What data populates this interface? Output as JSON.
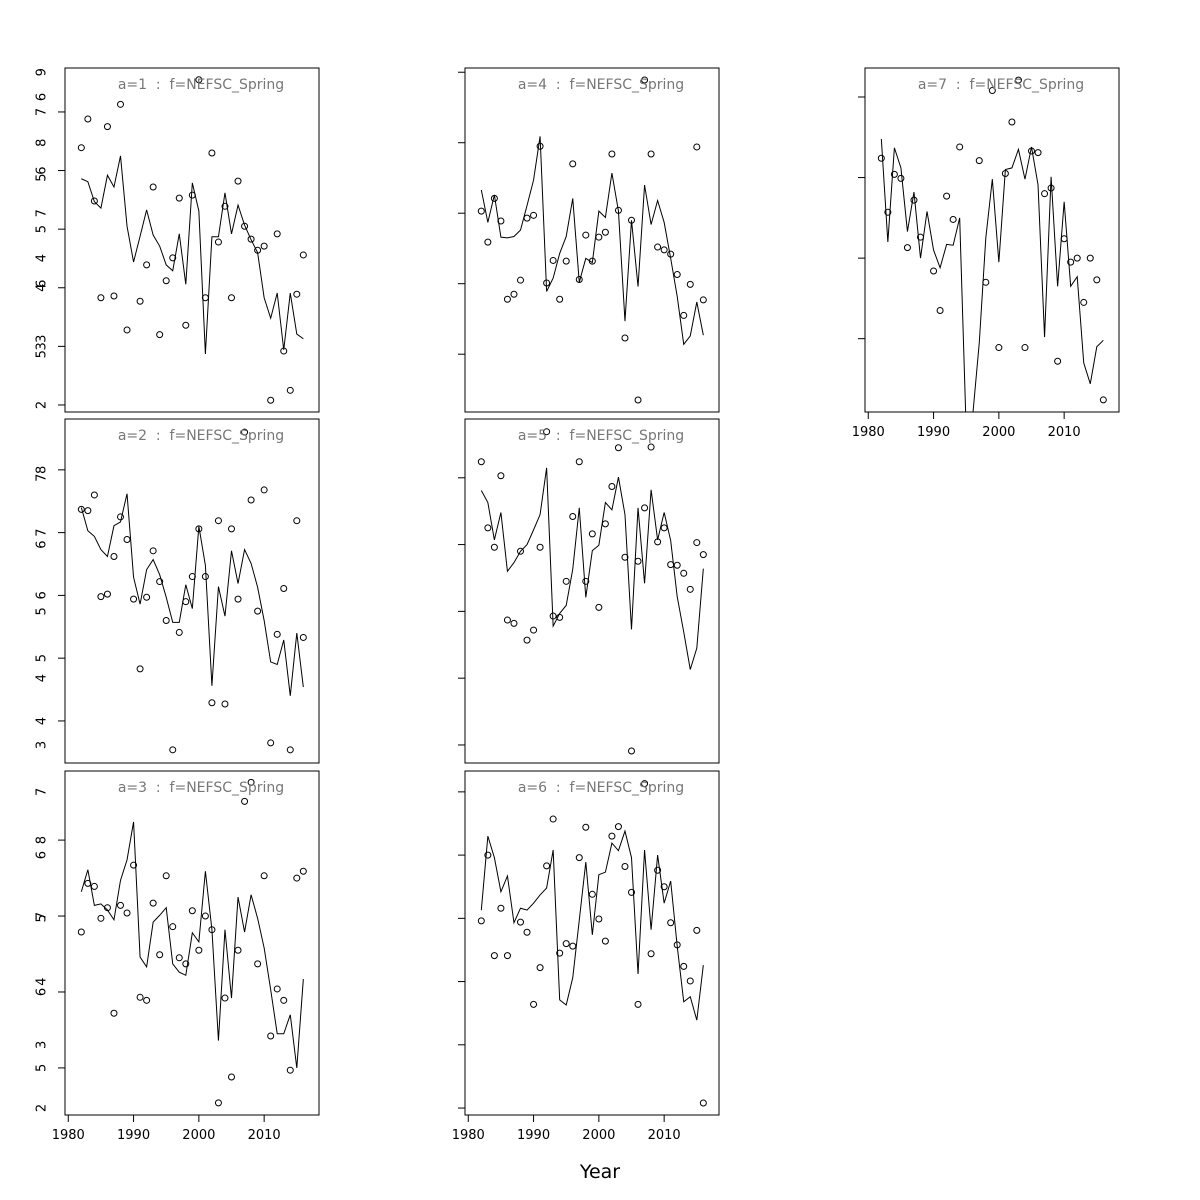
{
  "xlabel": "Year",
  "chart_data": [
    {
      "type": "line",
      "title": "a=1  :  f=NEFSC_Spring",
      "x": [
        1982,
        1983,
        1984,
        1985,
        1986,
        1987,
        1988,
        1989,
        1990,
        1991,
        1992,
        1993,
        1994,
        1995,
        1996,
        1997,
        1998,
        1999,
        2000,
        2001,
        2002,
        2003,
        2004,
        2005,
        2006,
        2007,
        2008,
        2009,
        2010,
        2011,
        2012,
        2013,
        2014,
        2015,
        2016
      ],
      "series": [
        {
          "color": "#000000",
          "marker": "circle",
          "values": [
            6.39,
            6.88,
            5.48,
            3.83,
            6.75,
            3.86,
            7.13,
            3.28,
            null,
            3.77,
            4.39,
            5.72,
            3.2,
            4.12,
            4.51,
            5.53,
            3.36,
            5.58,
            7.55,
            3.83,
            6.3,
            4.78,
            5.39,
            3.83,
            5.82,
            5.05,
            4.83,
            4.64,
            4.71,
            2.08,
            4.92,
            2.92,
            2.25,
            3.89,
            4.56
          ]
        },
        {
          "color": "#000000",
          "marker": "none",
          "values": [
            5.86,
            5.81,
            5.47,
            5.36,
            5.92,
            5.72,
            6.25,
            5.05,
            4.44,
            4.88,
            5.33,
            4.9,
            4.71,
            4.39,
            4.29,
            4.92,
            4.06,
            5.79,
            5.31,
            2.87,
            4.87,
            4.87,
            5.62,
            4.92,
            5.41,
            5.07,
            4.82,
            4.6,
            3.83,
            3.48,
            3.91,
            2.94,
            3.91,
            3.21,
            3.13
          ]
        }
      ],
      "xlim": [
        1979.5,
        2018.4
      ],
      "ylim": [
        1.88,
        7.75
      ],
      "yticks": [
        2,
        3,
        4,
        5,
        6,
        7
      ]
    },
    {
      "type": "line",
      "title": "a=2  :  f=NEFSC_Spring",
      "x": [
        1982,
        1983,
        1984,
        1985,
        1986,
        1987,
        1988,
        1989,
        1990,
        1991,
        1992,
        1993,
        1994,
        1995,
        1996,
        1997,
        1998,
        1999,
        2000,
        2001,
        2002,
        2003,
        2004,
        2005,
        2006,
        2007,
        2008,
        2009,
        2010,
        2011,
        2012,
        2013,
        2014,
        2015,
        2016
      ],
      "series": [
        {
          "color": "#000000",
          "marker": "circle",
          "values": [
            7.37,
            7.35,
            7.6,
            5.98,
            6.02,
            6.62,
            7.25,
            6.89,
            5.94,
            4.83,
            5.97,
            6.71,
            6.22,
            5.6,
            3.54,
            5.41,
            5.9,
            6.3,
            7.06,
            6.3,
            4.29,
            7.19,
            4.27,
            7.06,
            5.94,
            8.6,
            7.52,
            5.75,
            7.68,
            3.65,
            5.38,
            6.11,
            3.54,
            7.19,
            5.33
          ]
        },
        {
          "color": "#000000",
          "marker": "none",
          "values": [
            7.4,
            7.03,
            6.94,
            6.73,
            6.62,
            7.11,
            7.17,
            7.62,
            6.29,
            5.86,
            6.41,
            6.57,
            6.33,
            5.97,
            5.57,
            5.57,
            6.17,
            5.79,
            7.1,
            6.48,
            4.56,
            6.14,
            5.67,
            6.71,
            6.19,
            6.73,
            6.51,
            6.13,
            5.6,
            4.94,
            4.9,
            5.29,
            4.4,
            5.4,
            4.54
          ]
        }
      ],
      "xlim": [
        1979.5,
        2018.4
      ],
      "ylim": [
        3.33,
        8.81
      ],
      "yticks": [
        4,
        5,
        6,
        7,
        8
      ]
    },
    {
      "type": "line",
      "title": "a=3  :  f=NEFSC_Spring",
      "x": [
        1982,
        1983,
        1984,
        1985,
        1986,
        1987,
        1988,
        1989,
        1990,
        1991,
        1992,
        1993,
        1994,
        1995,
        1996,
        1997,
        1998,
        1999,
        2000,
        2001,
        2002,
        2003,
        2004,
        2005,
        2006,
        2007,
        2008,
        2009,
        2010,
        2011,
        2012,
        2013,
        2014,
        2015,
        2016
      ],
      "series": [
        {
          "color": "#000000",
          "marker": "circle",
          "values": [
            6.79,
            7.43,
            7.39,
            6.97,
            7.11,
            5.72,
            7.14,
            7.04,
            7.67,
            5.93,
            5.89,
            7.17,
            6.49,
            7.53,
            6.86,
            6.45,
            6.37,
            7.07,
            6.55,
            7.0,
            6.82,
            4.54,
            5.92,
            4.88,
            6.55,
            8.51,
            8.76,
            6.37,
            7.53,
            5.42,
            6.04,
            5.89,
            4.97,
            7.5,
            7.59
          ]
        },
        {
          "color": "#000000",
          "marker": "none",
          "values": [
            7.32,
            7.61,
            7.14,
            7.16,
            7.08,
            6.95,
            7.47,
            7.74,
            8.24,
            6.46,
            6.33,
            6.92,
            7.01,
            7.11,
            6.37,
            6.26,
            6.22,
            6.78,
            6.66,
            7.59,
            6.82,
            5.36,
            6.82,
            5.92,
            7.25,
            6.79,
            7.28,
            6.97,
            6.58,
            6.03,
            5.45,
            5.45,
            5.7,
            5.0,
            6.17
          ]
        }
      ],
      "xlim": [
        1979.5,
        2018.4
      ],
      "ylim": [
        4.38,
        8.91
      ],
      "yticks": [
        5,
        6,
        7,
        8
      ],
      "xticks": [
        1980,
        1990,
        2000,
        2010
      ]
    },
    {
      "type": "line",
      "title": "a=4  :  f=NEFSC_Spring",
      "x": [
        1982,
        1983,
        1984,
        1985,
        1986,
        1987,
        1988,
        1989,
        1990,
        1991,
        1992,
        1993,
        1994,
        1995,
        1996,
        1997,
        1998,
        1999,
        2000,
        2001,
        2002,
        2003,
        2004,
        2005,
        2006,
        2007,
        2008,
        2009,
        2010,
        2011,
        2012,
        2013,
        2014,
        2015,
        2016
      ],
      "series": [
        {
          "color": "#000000",
          "marker": "circle",
          "values": [
            7.03,
            6.59,
            7.21,
            6.89,
            5.78,
            5.85,
            6.05,
            6.93,
            6.97,
            7.95,
            6.01,
            6.33,
            5.78,
            6.32,
            7.7,
            6.06,
            6.69,
            6.32,
            6.66,
            6.73,
            7.84,
            7.04,
            5.23,
            6.9,
            4.35,
            8.89,
            7.84,
            6.52,
            6.48,
            6.42,
            6.13,
            5.55,
            5.99,
            7.94,
            5.77
          ]
        },
        {
          "color": "#000000",
          "marker": "none",
          "values": [
            7.33,
            6.87,
            7.26,
            6.66,
            6.65,
            6.67,
            6.76,
            7.11,
            7.47,
            8.09,
            5.89,
            6.08,
            6.43,
            6.67,
            7.21,
            6.02,
            6.36,
            6.3,
            7.03,
            6.94,
            7.57,
            7.03,
            5.47,
            6.9,
            5.96,
            7.4,
            6.84,
            7.18,
            6.87,
            6.36,
            5.82,
            5.14,
            5.26,
            5.74,
            5.27
          ]
        }
      ],
      "xlim": [
        1979.5,
        2018.4
      ],
      "ylim": [
        4.18,
        9.06
      ],
      "yticks": [
        5,
        6,
        7,
        8,
        9
      ]
    },
    {
      "type": "line",
      "title": "a=5  :  f=NEFSC_Spring",
      "x": [
        1982,
        1983,
        1984,
        1985,
        1986,
        1987,
        1988,
        1989,
        1990,
        1991,
        1992,
        1993,
        1994,
        1995,
        1996,
        1997,
        1998,
        1999,
        2000,
        2001,
        2002,
        2003,
        2004,
        2005,
        2006,
        2007,
        2008,
        2009,
        2010,
        2011,
        2012,
        2013,
        2014,
        2015,
        2016
      ],
      "series": [
        {
          "color": "#000000",
          "marker": "circle",
          "values": [
            7.24,
            6.25,
            5.96,
            7.03,
            4.87,
            4.82,
            5.9,
            4.57,
            4.72,
            5.96,
            7.69,
            4.93,
            4.91,
            5.45,
            6.42,
            7.24,
            5.45,
            6.16,
            5.06,
            6.31,
            6.87,
            7.45,
            5.81,
            2.91,
            5.75,
            6.55,
            7.46,
            6.04,
            6.25,
            5.7,
            5.69,
            5.57,
            5.33,
            6.03,
            5.85
          ]
        },
        {
          "color": "#000000",
          "marker": "none",
          "values": [
            6.81,
            6.63,
            6.07,
            6.48,
            5.6,
            5.73,
            5.9,
            6.0,
            6.22,
            6.45,
            7.15,
            4.78,
            4.97,
            5.09,
            5.63,
            6.55,
            5.21,
            5.91,
            5.99,
            6.63,
            6.52,
            7.01,
            6.45,
            4.73,
            6.55,
            5.42,
            6.82,
            6.07,
            6.48,
            6.06,
            5.22,
            4.69,
            4.13,
            4.45,
            5.64
          ]
        }
      ],
      "xlim": [
        1979.5,
        2018.4
      ],
      "ylim": [
        2.73,
        7.88
      ],
      "yticks": [
        3,
        4,
        5,
        6,
        7
      ]
    },
    {
      "type": "line",
      "title": "a=6  :  f=NEFSC_Spring",
      "x": [
        1982,
        1983,
        1984,
        1985,
        1986,
        1987,
        1988,
        1989,
        1990,
        1991,
        1992,
        1993,
        1994,
        1995,
        1996,
        1997,
        1998,
        1999,
        2000,
        2001,
        2002,
        2003,
        2004,
        2005,
        2006,
        2007,
        2008,
        2009,
        2010,
        2011,
        2012,
        2013,
        2014,
        2015,
        2016
      ],
      "series": [
        {
          "color": "#000000",
          "marker": "circle",
          "values": [
            4.96,
            6.0,
            4.41,
            5.16,
            4.41,
            null,
            4.94,
            4.78,
            3.64,
            4.22,
            5.83,
            6.57,
            4.45,
            4.6,
            4.56,
            5.96,
            6.44,
            5.38,
            4.99,
            4.64,
            6.3,
            6.45,
            5.82,
            5.41,
            3.64,
            7.13,
            4.44,
            5.76,
            5.5,
            4.93,
            4.58,
            4.24,
            4.01,
            4.81,
            2.08
          ]
        },
        {
          "color": "#000000",
          "marker": "none",
          "values": [
            5.13,
            6.3,
            5.96,
            5.42,
            5.67,
            4.93,
            5.16,
            5.13,
            5.24,
            5.37,
            5.48,
            6.08,
            3.71,
            3.63,
            4.06,
            4.97,
            5.89,
            4.74,
            5.69,
            5.73,
            6.19,
            6.07,
            6.38,
            5.96,
            4.12,
            6.08,
            4.82,
            6.0,
            5.24,
            5.59,
            4.56,
            3.68,
            3.76,
            3.39,
            4.26
          ]
        }
      ],
      "xlim": [
        1979.5,
        2018.4
      ],
      "ylim": [
        1.89,
        7.33
      ],
      "yticks": [
        2,
        3,
        4,
        5,
        6,
        7
      ],
      "xticks": [
        1980,
        1990,
        2000,
        2010
      ]
    },
    {
      "type": "line",
      "title": "a=7  :  f=NEFSC_Spring",
      "x": [
        1982,
        1983,
        1984,
        1985,
        1986,
        1987,
        1988,
        1989,
        1990,
        1991,
        1992,
        1993,
        1994,
        1995,
        1996,
        1997,
        1998,
        1999,
        2000,
        2001,
        2002,
        2003,
        2004,
        2005,
        2006,
        2007,
        2008,
        2009,
        2010,
        2011,
        2012,
        2013,
        2014,
        2015,
        2016
      ],
      "series": [
        {
          "color": "#000000",
          "marker": "circle",
          "values": [
            5.24,
            4.57,
            5.04,
            4.99,
            4.13,
            4.72,
            4.26,
            null,
            3.84,
            3.35,
            4.77,
            4.48,
            5.38,
            null,
            null,
            5.21,
            3.7,
            6.08,
            2.89,
            5.05,
            5.69,
            6.21,
            2.89,
            5.33,
            5.31,
            4.8,
            4.87,
            2.72,
            4.24,
            3.95,
            4.0,
            3.45,
            4.0,
            3.73,
            2.24
          ]
        },
        {
          "color": "#000000",
          "marker": "none",
          "values": [
            5.48,
            4.2,
            5.37,
            5.12,
            4.33,
            4.82,
            4.0,
            4.58,
            4.1,
            3.88,
            4.17,
            4.16,
            4.5,
            1.85,
            2.05,
            2.95,
            4.25,
            4.98,
            3.95,
            5.1,
            5.12,
            5.35,
            4.98,
            5.38,
            4.91,
            3.02,
            5.01,
            3.65,
            4.7,
            3.65,
            3.77,
            2.7,
            2.44,
            2.9,
            2.98
          ]
        }
      ],
      "xlim": [
        1979.5,
        2018.4
      ],
      "ylim": [
        2.09,
        6.36
      ],
      "yticks": [
        3,
        4,
        5,
        6
      ],
      "xticks": [
        1980,
        1990,
        2000,
        2010
      ]
    }
  ]
}
